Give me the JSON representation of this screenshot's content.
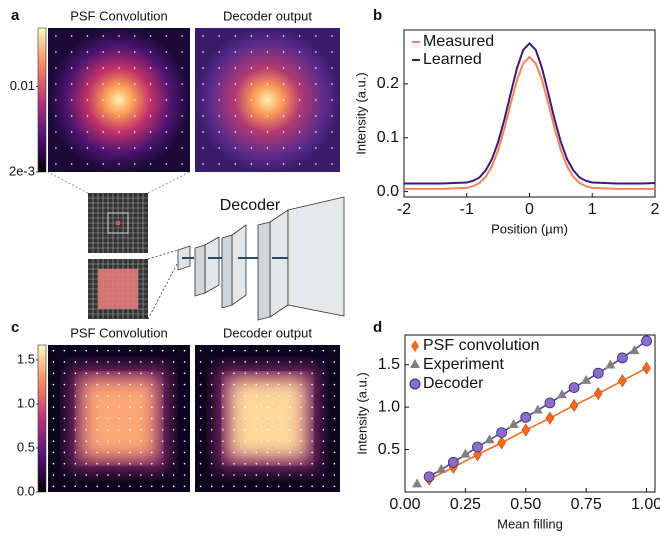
{
  "panel_labels": [
    "a",
    "b",
    "c",
    "d"
  ],
  "diagram": {
    "label": "Decoder"
  },
  "chart_data": [
    {
      "type": "heatmap",
      "shape": "spot",
      "titles": [
        "PSF Convolution",
        "Decoder output"
      ],
      "clim": [
        0.002,
        0.03
      ],
      "log_scale": true,
      "cticks": [
        0.01,
        {
          "value": 0.002,
          "label": "2e-3"
        }
      ]
    },
    {
      "type": "line",
      "xlabel": "Position (µm)",
      "ylabel": "Intensity (a.u.)",
      "xlim": [
        -2,
        2
      ],
      "ylim": [
        -0.01,
        0.3
      ],
      "xticks": [
        -2,
        -1,
        0,
        1,
        2
      ],
      "yticks": [
        {
          "value": 0,
          "label": "0.0"
        },
        0.1,
        0.2
      ],
      "legend": "upper left",
      "x": [
        -2,
        -1.8,
        -1.6,
        -1.4,
        -1.2,
        -1.0,
        -0.9,
        -0.8,
        -0.7,
        -0.6,
        -0.5,
        -0.4,
        -0.3,
        -0.2,
        -0.1,
        0,
        0.1,
        0.2,
        0.3,
        0.4,
        0.5,
        0.6,
        0.7,
        0.8,
        0.9,
        1.0,
        1.2,
        1.4,
        1.6,
        1.8,
        2
      ],
      "series": [
        {
          "name": "Measured",
          "color": "#f2845a",
          "values": [
            0.005,
            0.005,
            0.005,
            0.005,
            0.006,
            0.007,
            0.01,
            0.016,
            0.027,
            0.047,
            0.077,
            0.117,
            0.163,
            0.207,
            0.238,
            0.25,
            0.238,
            0.207,
            0.163,
            0.117,
            0.077,
            0.047,
            0.027,
            0.016,
            0.01,
            0.007,
            0.006,
            0.005,
            0.005,
            0.005,
            0.005
          ]
        },
        {
          "name": "Learned",
          "color": "#3b1a78",
          "values": [
            0.015,
            0.015,
            0.015,
            0.015,
            0.016,
            0.017,
            0.02,
            0.026,
            0.039,
            0.06,
            0.092,
            0.134,
            0.182,
            0.229,
            0.263,
            0.275,
            0.263,
            0.229,
            0.182,
            0.134,
            0.092,
            0.06,
            0.039,
            0.026,
            0.02,
            0.017,
            0.016,
            0.015,
            0.015,
            0.015,
            0.016
          ]
        }
      ]
    },
    {
      "type": "heatmap",
      "shape": "square",
      "titles": [
        "PSF Convolution",
        "Decoder output"
      ],
      "clim": [
        0,
        1.67
      ],
      "log_scale": false,
      "cticks": [
        {
          "value": 0,
          "label": "0.0"
        },
        0.5,
        {
          "value": 1,
          "label": "1.0"
        },
        1.5
      ]
    },
    {
      "type": "scatter",
      "xlabel": "Mean filling",
      "ylabel": "Intensity (a.u.)",
      "xlim": [
        0,
        1.035
      ],
      "ylim": [
        0,
        1.85
      ],
      "xticks": [
        {
          "value": 0,
          "label": "0.00"
        },
        0.25,
        {
          "value": 0.5,
          "label": "0.50"
        },
        0.75,
        {
          "value": 1,
          "label": "1.00"
        }
      ],
      "yticks": [
        0.5,
        {
          "value": 1,
          "label": "1.0"
        },
        1.5
      ],
      "legend": "upper left",
      "series": [
        {
          "name": "PSF convolution",
          "color": "#f26b1d",
          "marker": "diamond",
          "line": true,
          "x": [
            0.1,
            0.2,
            0.3,
            0.4,
            0.5,
            0.6,
            0.7,
            0.8,
            0.9,
            1.0
          ],
          "values": [
            0.15,
            0.29,
            0.44,
            0.58,
            0.73,
            0.87,
            1.02,
            1.16,
            1.31,
            1.46
          ]
        },
        {
          "name": "Experiment",
          "color": "#808080",
          "marker": "triangle",
          "line": false,
          "x": [
            0.05,
            0.15,
            0.25,
            0.35,
            0.45,
            0.55,
            0.65,
            0.75,
            0.85,
            0.95
          ],
          "values": [
            0.09,
            0.26,
            0.44,
            0.61,
            0.79,
            0.96,
            1.14,
            1.31,
            1.49,
            1.66
          ]
        },
        {
          "name": "Decoder",
          "color": "#8a6cc9",
          "marker": "circle",
          "line": true,
          "x": [
            0.1,
            0.2,
            0.3,
            0.4,
            0.5,
            0.6,
            0.7,
            0.8,
            0.9,
            1.0
          ],
          "values": [
            0.18,
            0.35,
            0.53,
            0.7,
            0.88,
            1.05,
            1.23,
            1.4,
            1.58,
            1.78
          ]
        }
      ]
    }
  ]
}
